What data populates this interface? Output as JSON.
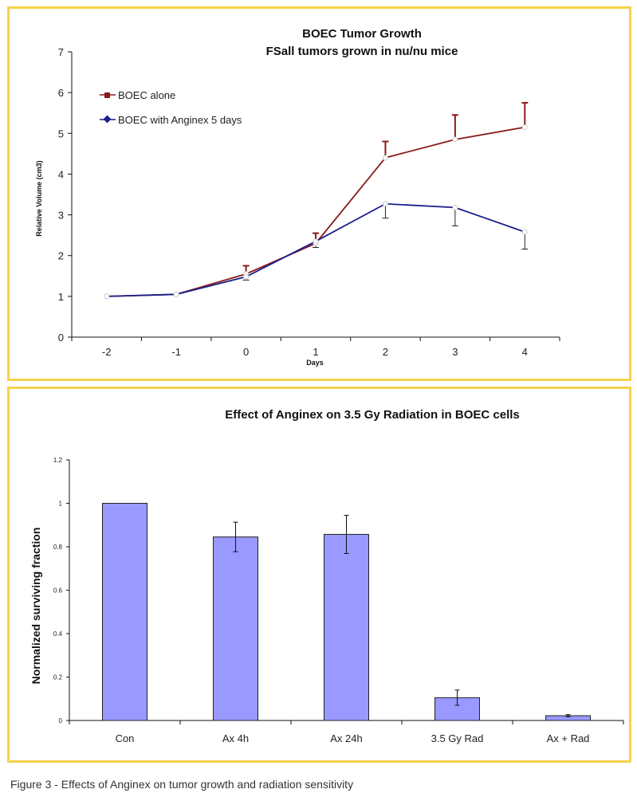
{
  "figure_caption": "Figure 3 - Effects of Anginex on tumor growth and radiation sensitivity",
  "colors": {
    "panel_border": "#f5d24a",
    "series_alone": "#8b1a1a",
    "series_anginex": "#1a1f8a",
    "bar_fill": "#9999ff",
    "bar_stroke": "#222222"
  },
  "chart_data": [
    {
      "type": "line",
      "title": "BOEC Tumor Growth",
      "subtitle": "FSall tumors grown in nu/nu mice",
      "xlabel": "Days",
      "ylabel": "Relative Volume (cm3)",
      "categories": [
        "-2",
        "-1",
        "0",
        "1",
        "2",
        "3",
        "4"
      ],
      "x": [
        -2,
        -1,
        0,
        1,
        2,
        3,
        4
      ],
      "ylim": [
        0,
        7
      ],
      "yticks": [
        "0",
        "1",
        "2",
        "3",
        "4",
        "5",
        "6",
        "7"
      ],
      "grid": false,
      "legend_position": "top-left",
      "series": [
        {
          "name": "BOEC alone",
          "values": [
            1.0,
            1.05,
            1.55,
            2.3,
            4.4,
            4.85,
            5.15
          ],
          "error_up": [
            0,
            0,
            0.2,
            0.25,
            0.4,
            0.6,
            0.6
          ],
          "error_down": [
            0,
            0,
            0,
            0,
            0,
            0,
            0
          ]
        },
        {
          "name": "BOEC with Anginex 5 days",
          "values": [
            1.0,
            1.05,
            1.48,
            2.35,
            3.27,
            3.18,
            2.58
          ],
          "error_up": [
            0,
            0,
            0,
            0,
            0,
            0,
            0
          ],
          "error_down": [
            0,
            0,
            0.08,
            0.15,
            0.35,
            0.45,
            0.42
          ]
        }
      ]
    },
    {
      "type": "bar",
      "title": "Effect of Anginex on 3.5 Gy Radiation in BOEC cells",
      "xlabel": "",
      "ylabel": "Normalized surviving fraction",
      "categories": [
        "Con",
        "Ax 4h",
        "Ax 24h",
        "3.5 Gy Rad",
        "Ax + Rad"
      ],
      "values": [
        1.0,
        0.845,
        0.857,
        0.105,
        0.022
      ],
      "errors": [
        0,
        0.068,
        0.088,
        0.035,
        0.005
      ],
      "ylim": [
        0,
        1.2
      ],
      "yticks": [
        "0",
        "0.2",
        "0.4",
        "0.6",
        "0.8",
        "1",
        "1.2"
      ],
      "grid": false
    }
  ]
}
